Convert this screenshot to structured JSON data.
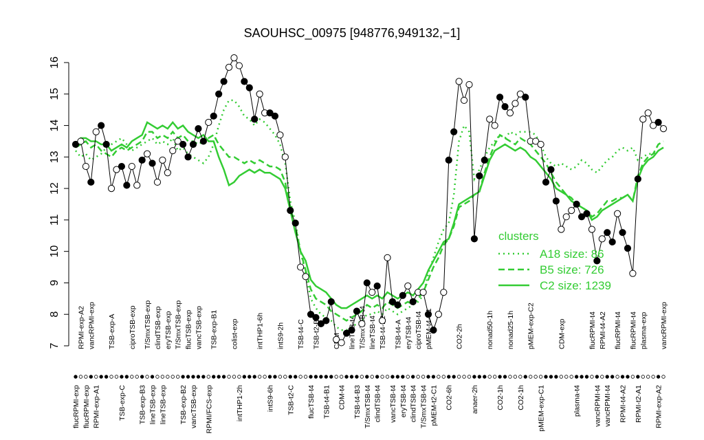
{
  "chart_data": {
    "type": "line",
    "title": "SAOUHSC_00975 [948776,949132,−1]",
    "ylim": [
      7,
      16
    ],
    "yticks": [
      7,
      8,
      9,
      10,
      11,
      12,
      13,
      14,
      15,
      16
    ],
    "legend": {
      "title": "clusters",
      "position": "right"
    },
    "categories_top": [
      null,
      "RPMI-exp-A2",
      null,
      "vancRPMI-exp",
      null,
      null,
      null,
      "TSB-exp-A",
      null,
      null,
      null,
      "ciproTSB-exp",
      null,
      null,
      "T/SmxTSB-exp",
      null,
      "clindTSB-exp",
      null,
      "eryTSB-exp",
      null,
      "T/SmxTSB-exp",
      null,
      "flucTSB-exp",
      null,
      "vancTSB-exp",
      null,
      null,
      "TSB-exp-B1",
      null,
      null,
      null,
      "colist-exp",
      null,
      null,
      null,
      null,
      "intTHP1-6h",
      null,
      null,
      null,
      "intS9-2h",
      null,
      null,
      null,
      "TSB-t4-C",
      null,
      null,
      "TSB-t2-B1",
      null,
      null,
      null,
      "CDM",
      null,
      null,
      "lineTSB-t4",
      null,
      "T/SmxTSB-t4",
      null,
      "lineTSB-t4",
      null,
      "TSB-t4-B2",
      null,
      null,
      "TSB-t4-A",
      null,
      "eryTSB-t4",
      null,
      "ciproTSB-t4",
      null,
      "pMEM-t4-C1",
      null,
      null,
      null,
      null,
      null,
      "CO2-2h",
      null,
      null,
      null,
      null,
      null,
      "nonad50-1h",
      null,
      null,
      null,
      "nonad25-1h",
      null,
      null,
      null,
      "pMEM-exp-C2",
      null,
      null,
      null,
      null,
      null,
      "CDM-exp",
      null,
      null,
      null,
      null,
      null,
      "flucRPMI-t4",
      null,
      "RPMI-t4-A2",
      null,
      null,
      "flucRPMI-t4",
      null,
      null,
      "flucRPMI-t4",
      null,
      "plasma-exp",
      null,
      null,
      null,
      "vancRPMI-exp"
    ],
    "categories_bottom": [
      "flucRPMI-exp",
      null,
      "flucRPMI-exp",
      null,
      "RPMI-exp-A1",
      null,
      null,
      null,
      null,
      "TSB-exp-C",
      null,
      null,
      null,
      "TSB-exp-B3",
      null,
      "lineTSB-exp",
      null,
      "lineTSB-exp",
      null,
      null,
      null,
      "TSB-exp-B2",
      null,
      "vancTSB-exp",
      null,
      null,
      "RPMI/FCS-exp",
      null,
      null,
      null,
      null,
      null,
      "intTHP1-2h",
      null,
      null,
      null,
      null,
      null,
      "intS9-6h",
      null,
      null,
      null,
      "TSB-t2-C",
      null,
      null,
      null,
      "flucTSB-t4",
      null,
      null,
      "TSB-t4-B1",
      null,
      null,
      "CDM-t4",
      null,
      null,
      "TSB-t4-B3",
      null,
      "T/SmxTSB-t4",
      null,
      "clindTSB-t4",
      null,
      null,
      "vancTSB-t4",
      null,
      "eryTSB-t4",
      null,
      "clindTSB-t4",
      null,
      "T/SmxTSB-t4",
      null,
      "pMEM-t2-C1",
      null,
      null,
      "CO2-6h",
      null,
      null,
      null,
      null,
      "anaer-2h",
      null,
      null,
      null,
      null,
      "CO2-1h",
      null,
      null,
      null,
      "CO2-1h",
      null,
      null,
      null,
      "pMEM-exp-C1",
      null,
      null,
      null,
      null,
      null,
      null,
      "plasma-t4",
      null,
      null,
      null,
      "vancRPMI-t4",
      null,
      "vancRPMI-t4",
      null,
      null,
      "RPMI-t4-A2",
      null,
      null,
      "RPMI-t2-A1",
      null,
      null,
      null,
      "RPMI-exp-A2",
      null
    ],
    "series": [
      {
        "color": "#000000",
        "linestyle": "solid",
        "markers": true,
        "values": [
          13.4,
          13.5,
          12.7,
          12.2,
          13.8,
          14.0,
          13.4,
          12.0,
          12.6,
          12.7,
          12.1,
          12.7,
          12.1,
          12.9,
          13.1,
          12.8,
          12.2,
          12.9,
          12.5,
          13.2,
          13.5,
          13.4,
          13.0,
          13.4,
          13.9,
          13.5,
          14.1,
          14.3,
          15.0,
          15.4,
          15.85,
          16.15,
          15.9,
          15.4,
          15.2,
          14.2,
          15.0,
          14.4,
          14.4,
          14.3,
          13.7,
          13.0,
          11.3,
          10.9,
          9.5,
          9.2,
          8.0,
          7.9,
          7.7,
          7.8,
          8.4,
          7.2,
          7.1,
          7.4,
          7.5,
          8.1,
          7.7,
          9.0,
          8.7,
          8.9,
          7.8,
          9.8,
          8.4,
          8.3,
          8.6,
          8.9,
          8.4,
          8.7,
          8.7,
          8.0,
          7.5,
          8.0,
          8.7,
          12.9,
          13.8,
          15.4,
          14.8,
          15.3,
          10.4,
          12.4,
          12.9,
          14.2,
          14.0,
          14.9,
          14.6,
          14.4,
          14.7,
          15.0,
          14.9,
          13.5,
          13.5,
          13.4,
          12.2,
          12.6,
          11.6,
          10.7,
          11.1,
          11.3,
          11.5,
          11.1,
          11.2,
          10.7,
          9.7,
          10.4,
          10.6,
          10.3,
          11.2,
          10.6,
          10.1,
          9.3,
          12.3,
          14.2,
          14.4,
          14.0,
          14.1,
          13.9
        ],
        "filled": [
          true,
          false,
          false,
          true,
          false,
          true,
          true,
          false,
          false,
          true,
          true,
          false,
          false,
          true,
          false,
          true,
          false,
          false,
          false,
          false,
          false,
          true,
          true,
          true,
          true,
          true,
          false,
          true,
          true,
          true,
          false,
          false,
          false,
          true,
          true,
          true,
          false,
          false,
          true,
          true,
          false,
          false,
          true,
          true,
          false,
          false,
          true,
          true,
          true,
          true,
          true,
          false,
          false,
          true,
          true,
          true,
          false,
          true,
          false,
          true,
          false,
          false,
          true,
          true,
          true,
          false,
          true,
          false,
          false,
          true,
          true,
          false,
          false,
          true,
          true,
          false,
          false,
          false,
          true,
          true,
          true,
          false,
          false,
          true,
          true,
          false,
          false,
          false,
          true,
          false,
          false,
          false,
          true,
          true,
          true,
          false,
          false,
          false,
          true,
          true,
          true,
          false,
          true,
          false,
          true,
          true,
          false,
          true,
          true,
          false,
          true,
          false,
          false,
          false,
          true,
          false
        ]
      },
      {
        "name": "A18 size: 86",
        "color": "#33cc33",
        "linestyle": "dotted",
        "values": [
          13.2,
          13.0,
          13.1,
          12.9,
          13.0,
          13.1,
          13.3,
          13.4,
          13.5,
          13.6,
          13.4,
          13.2,
          13.3,
          13.4,
          13.5,
          13.6,
          13.4,
          13.5,
          13.4,
          13.6,
          13.2,
          13.3,
          13.1,
          13.0,
          12.9,
          12.8,
          13.0,
          13.4,
          14.0,
          14.5,
          14.8,
          14.8,
          14.6,
          14.3,
          14.2,
          14.0,
          14.2,
          14.1,
          13.9,
          13.7,
          13.4,
          12.8,
          11.6,
          10.9,
          10.0,
          9.3,
          8.5,
          8.2,
          8.0,
          7.9,
          7.8,
          7.6,
          7.5,
          7.5,
          7.6,
          7.7,
          7.8,
          8.0,
          8.0,
          8.1,
          8.0,
          8.2,
          8.1,
          8.0,
          8.1,
          8.2,
          8.3,
          8.4,
          8.6,
          9.3,
          9.8,
          10.3,
          10.7,
          10.9,
          11.8,
          13.5,
          14.0,
          13.8,
          12.3,
          12.6,
          13.0,
          13.3,
          13.5,
          13.7,
          13.6,
          13.8,
          13.7,
          13.8,
          13.8,
          13.8,
          13.7,
          13.4,
          13.0,
          12.8,
          12.7,
          12.8,
          12.7,
          12.6,
          12.7,
          12.9,
          12.8,
          12.6,
          12.5,
          12.7,
          12.9,
          13.0,
          13.2,
          13.3,
          13.2,
          13.3,
          12.9,
          13.0,
          13.1,
          13.1,
          13.2,
          13.3
        ]
      },
      {
        "name": "B5 size: 726",
        "color": "#33cc33",
        "linestyle": "dashed",
        "values": [
          13.3,
          13.4,
          13.5,
          13.3,
          13.4,
          13.2,
          13.1,
          13.0,
          13.2,
          13.3,
          13.2,
          13.3,
          13.4,
          13.5,
          13.8,
          13.8,
          13.6,
          13.7,
          13.6,
          13.8,
          13.6,
          13.7,
          13.5,
          13.5,
          13.4,
          13.5,
          13.6,
          13.7,
          13.4,
          13.2,
          13.0,
          13.0,
          12.9,
          12.8,
          12.9,
          12.8,
          12.9,
          12.8,
          12.7,
          12.7,
          12.6,
          12.2,
          11.4,
          10.8,
          10.0,
          9.4,
          8.8,
          8.5,
          8.4,
          8.3,
          8.1,
          8.0,
          7.9,
          7.8,
          7.9,
          8.0,
          8.1,
          8.3,
          8.2,
          8.3,
          8.2,
          8.4,
          8.3,
          8.2,
          8.3,
          8.4,
          8.3,
          8.5,
          8.7,
          9.1,
          9.5,
          9.8,
          10.2,
          10.4,
          10.8,
          11.4,
          11.5,
          11.6,
          11.8,
          11.9,
          12.5,
          13.0,
          13.4,
          13.7,
          13.6,
          13.5,
          13.4,
          13.6,
          13.5,
          13.4,
          13.2,
          13.0,
          12.8,
          12.5,
          12.2,
          12.0,
          11.8,
          11.7,
          11.5,
          11.4,
          11.3,
          11.1,
          11.2,
          11.4,
          11.6,
          11.6,
          11.7,
          11.7,
          11.8,
          11.6,
          12.4,
          12.8,
          13.0,
          13.1,
          13.4,
          13.5
        ]
      },
      {
        "name": "C2 size: 1239",
        "color": "#33cc33",
        "linestyle": "solid",
        "values": [
          13.4,
          13.6,
          13.6,
          13.5,
          13.5,
          13.4,
          13.4,
          13.2,
          13.3,
          13.4,
          13.3,
          13.5,
          13.6,
          13.7,
          14.1,
          14.0,
          13.9,
          14.0,
          13.9,
          14.1,
          13.9,
          14.0,
          13.8,
          13.7,
          13.6,
          13.7,
          13.5,
          13.5,
          13.0,
          12.6,
          12.1,
          12.2,
          12.4,
          12.5,
          12.6,
          12.5,
          12.6,
          12.5,
          12.5,
          12.4,
          12.3,
          12.0,
          11.3,
          10.6,
          10.0,
          9.7,
          9.1,
          8.9,
          8.8,
          8.7,
          8.5,
          8.3,
          8.2,
          8.2,
          8.3,
          8.4,
          8.5,
          8.6,
          8.5,
          8.6,
          8.5,
          8.7,
          8.6,
          8.5,
          8.6,
          8.7,
          8.6,
          8.8,
          9.0,
          9.4,
          9.7,
          10.0,
          10.3,
          10.4,
          10.9,
          11.5,
          11.6,
          11.7,
          11.8,
          11.9,
          12.4,
          12.9,
          13.2,
          13.3,
          13.4,
          13.3,
          13.2,
          13.3,
          13.2,
          13.0,
          12.9,
          12.7,
          12.5,
          12.3,
          12.0,
          11.9,
          11.8,
          11.6,
          11.5,
          11.4,
          11.3,
          11.0,
          11.1,
          11.3,
          11.4,
          11.5,
          11.6,
          11.7,
          11.8,
          11.6,
          12.3,
          12.7,
          12.9,
          13.0,
          13.2,
          13.3
        ]
      }
    ]
  }
}
